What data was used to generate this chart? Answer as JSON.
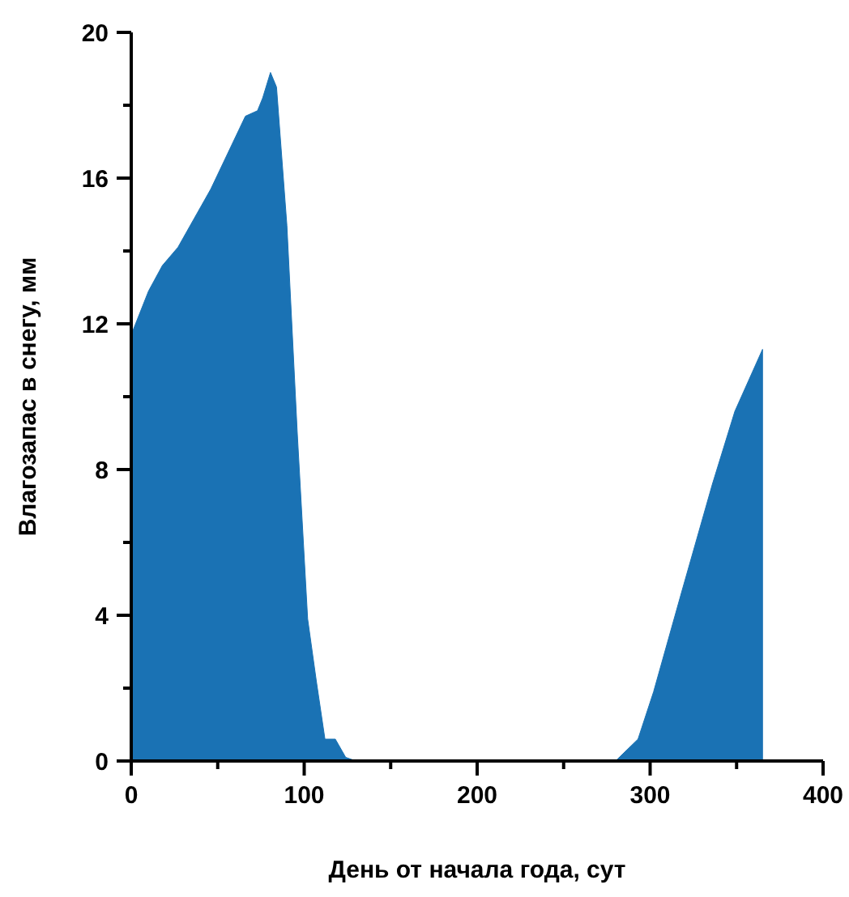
{
  "chart_data": {
    "type": "area",
    "xlabel": "День от начала года, сут",
    "ylabel": "Влагозапас в снегу, мм",
    "x": [
      0,
      10,
      18,
      27,
      46,
      66,
      73,
      76,
      80.5,
      84,
      90,
      96,
      102,
      107,
      112,
      118,
      124,
      130,
      200,
      280,
      293,
      302,
      318,
      336,
      349,
      365
    ],
    "series": [
      {
        "color": "#1a72b4",
        "values": [
          11.7,
          12.9,
          13.6,
          14.1,
          15.7,
          17.7,
          17.85,
          18.2,
          18.9,
          18.5,
          14.7,
          9.0,
          3.9,
          2.2,
          0.6,
          0.6,
          0.1,
          0,
          0,
          0,
          0.6,
          1.9,
          4.6,
          7.6,
          9.6,
          11.3
        ]
      }
    ],
    "xlim": [
      0,
      400
    ],
    "ylim": [
      0,
      20
    ],
    "xticks": [
      0,
      {
        "value": 50,
        "label": null
      },
      100,
      {
        "value": 150,
        "label": null
      },
      200,
      {
        "value": 250,
        "label": null
      },
      300,
      {
        "value": 350,
        "label": null
      },
      400
    ],
    "yticks": [
      0,
      {
        "value": 2,
        "label": null
      },
      4,
      {
        "value": 6,
        "label": null
      },
      8,
      {
        "value": 10,
        "label": null
      },
      12,
      {
        "value": 14,
        "label": null
      },
      16,
      {
        "value": 18,
        "label": null
      },
      20
    ],
    "grid": false
  }
}
